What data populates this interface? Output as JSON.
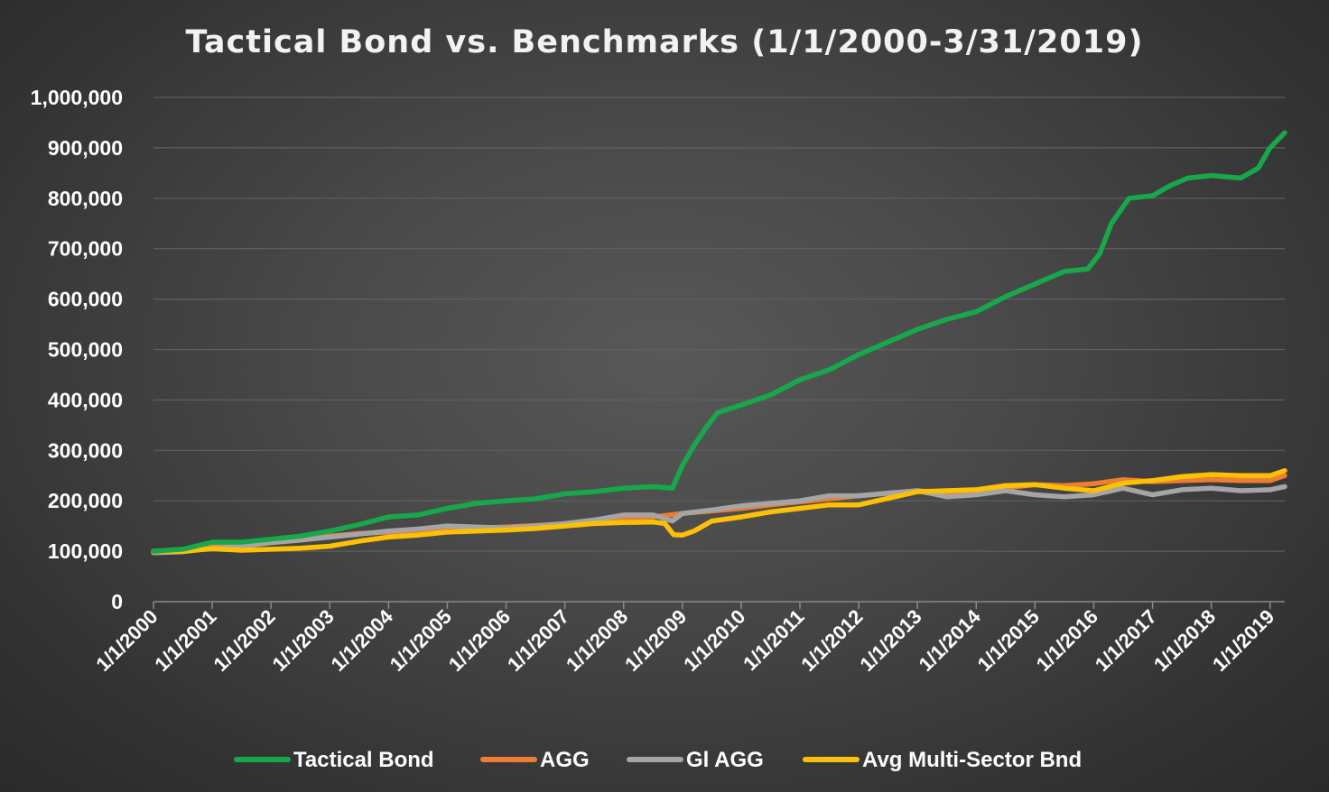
{
  "chart_data": {
    "type": "line",
    "title": "Tactical Bond vs. Benchmarks (1/1/2000-3/31/2019)",
    "xlabel": "",
    "ylabel": "",
    "ylim": [
      0,
      1000000
    ],
    "xlim": [
      2000.0,
      2019.25
    ],
    "y_ticks": [
      0,
      100000,
      200000,
      300000,
      400000,
      500000,
      600000,
      700000,
      800000,
      900000,
      1000000
    ],
    "y_tick_labels": [
      "0",
      "100,000",
      "200,000",
      "300,000",
      "400,000",
      "500,000",
      "600,000",
      "700,000",
      "800,000",
      "900,000",
      "1,000,000"
    ],
    "x_ticks": [
      2000,
      2001,
      2002,
      2003,
      2004,
      2005,
      2006,
      2007,
      2008,
      2009,
      2010,
      2011,
      2012,
      2013,
      2014,
      2015,
      2016,
      2017,
      2018,
      2019
    ],
    "x_tick_labels": [
      "1/1/2000",
      "1/1/2001",
      "1/1/2002",
      "1/1/2003",
      "1/1/2004",
      "1/1/2005",
      "1/1/2006",
      "1/1/2007",
      "1/1/2008",
      "1/1/2009",
      "1/1/2010",
      "1/1/2011",
      "1/1/2012",
      "1/1/2013",
      "1/1/2014",
      "1/1/2015",
      "1/1/2016",
      "1/1/2017",
      "1/1/2018",
      "1/1/2019"
    ],
    "grid": true,
    "legend_position": "bottom",
    "series": [
      {
        "name": "Tactical Bond",
        "color": "#17a84b",
        "x": [
          2000.0,
          2000.5,
          2001.0,
          2001.5,
          2002.0,
          2002.5,
          2003.0,
          2003.5,
          2004.0,
          2004.5,
          2005.0,
          2005.5,
          2006.0,
          2006.5,
          2007.0,
          2007.5,
          2008.0,
          2008.5,
          2008.83,
          2009.0,
          2009.2,
          2009.4,
          2009.6,
          2010.0,
          2010.5,
          2011.0,
          2011.5,
          2012.0,
          2012.5,
          2013.0,
          2013.5,
          2014.0,
          2014.5,
          2015.0,
          2015.5,
          2015.9,
          2016.1,
          2016.3,
          2016.6,
          2017.0,
          2017.3,
          2017.6,
          2018.0,
          2018.5,
          2018.8,
          2019.0,
          2019.25
        ],
        "values": [
          100000,
          104000,
          118000,
          118000,
          124000,
          130000,
          140000,
          153000,
          168000,
          172000,
          185000,
          195000,
          200000,
          204000,
          214000,
          218000,
          225000,
          228000,
          225000,
          270000,
          310000,
          345000,
          375000,
          390000,
          410000,
          440000,
          460000,
          490000,
          515000,
          540000,
          560000,
          575000,
          605000,
          630000,
          655000,
          660000,
          690000,
          750000,
          800000,
          805000,
          825000,
          840000,
          845000,
          840000,
          860000,
          900000,
          930000
        ]
      },
      {
        "name": "AGG",
        "color": "#ed7d31",
        "x": [
          2000.0,
          2000.5,
          2001.0,
          2001.5,
          2002.0,
          2002.5,
          2003.0,
          2003.5,
          2004.0,
          2004.5,
          2005.0,
          2005.5,
          2006.0,
          2006.5,
          2007.0,
          2007.5,
          2008.0,
          2008.5,
          2009.0,
          2009.5,
          2010.0,
          2010.5,
          2011.0,
          2011.5,
          2012.0,
          2012.5,
          2013.0,
          2013.5,
          2014.0,
          2014.5,
          2015.0,
          2015.5,
          2016.0,
          2016.5,
          2017.0,
          2017.5,
          2018.0,
          2018.5,
          2019.0,
          2019.25
        ],
        "values": [
          100000,
          104000,
          110000,
          115000,
          120000,
          124000,
          130000,
          135000,
          138000,
          140000,
          144000,
          146000,
          148000,
          151000,
          154000,
          158000,
          162000,
          168000,
          175000,
          180000,
          185000,
          192000,
          198000,
          204000,
          210000,
          215000,
          220000,
          214000,
          220000,
          226000,
          232000,
          230000,
          234000,
          242000,
          238000,
          240000,
          242000,
          240000,
          240000,
          250000
        ]
      },
      {
        "name": "Gl AGG",
        "color": "#a5a5a5",
        "x": [
          2000.0,
          2000.5,
          2001.0,
          2001.5,
          2002.0,
          2002.5,
          2003.0,
          2003.5,
          2004.0,
          2004.5,
          2005.0,
          2005.5,
          2006.0,
          2006.5,
          2007.0,
          2007.5,
          2008.0,
          2008.5,
          2008.83,
          2009.0,
          2009.5,
          2010.0,
          2010.5,
          2011.0,
          2011.5,
          2012.0,
          2012.5,
          2013.0,
          2013.5,
          2014.0,
          2014.5,
          2015.0,
          2015.5,
          2016.0,
          2016.5,
          2017.0,
          2017.5,
          2018.0,
          2018.5,
          2019.0,
          2019.25
        ],
        "values": [
          97000,
          99000,
          106000,
          110000,
          117000,
          122000,
          128000,
          134000,
          140000,
          144000,
          150000,
          148000,
          146000,
          150000,
          155000,
          162000,
          172000,
          172000,
          160000,
          175000,
          182000,
          190000,
          195000,
          200000,
          210000,
          210000,
          215000,
          220000,
          208000,
          212000,
          220000,
          212000,
          208000,
          212000,
          225000,
          212000,
          222000,
          225000,
          220000,
          222000,
          228000
        ]
      },
      {
        "name": "Avg Multi-Sector Bnd",
        "color": "#ffc000",
        "x": [
          2000.0,
          2000.5,
          2001.0,
          2001.5,
          2002.0,
          2002.5,
          2003.0,
          2003.5,
          2004.0,
          2004.5,
          2005.0,
          2005.5,
          2006.0,
          2006.5,
          2007.0,
          2007.5,
          2008.0,
          2008.5,
          2008.7,
          2008.85,
          2009.0,
          2009.2,
          2009.5,
          2010.0,
          2010.5,
          2011.0,
          2011.5,
          2012.0,
          2012.5,
          2013.0,
          2013.5,
          2014.0,
          2014.5,
          2015.0,
          2015.5,
          2016.0,
          2016.5,
          2017.0,
          2017.5,
          2018.0,
          2018.5,
          2019.0,
          2019.25
        ],
        "values": [
          100000,
          100000,
          105000,
          102000,
          104000,
          106000,
          110000,
          120000,
          128000,
          132000,
          138000,
          140000,
          142000,
          145000,
          150000,
          155000,
          157000,
          158000,
          155000,
          133000,
          132000,
          140000,
          160000,
          168000,
          178000,
          185000,
          192000,
          192000,
          205000,
          218000,
          220000,
          222000,
          230000,
          232000,
          225000,
          220000,
          235000,
          240000,
          248000,
          252000,
          250000,
          250000,
          260000
        ]
      }
    ]
  }
}
